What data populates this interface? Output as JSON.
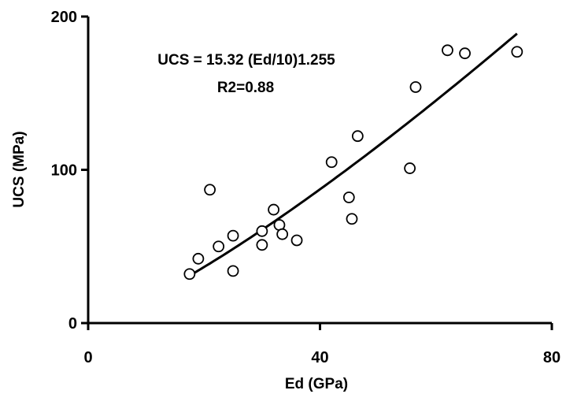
{
  "chart_data": {
    "type": "scatter",
    "title": "",
    "xlabel": "Ed (GPa)",
    "ylabel": "UCS (MPa)",
    "xlim": [
      0,
      80
    ],
    "ylim": [
      0,
      200
    ],
    "x_ticks": [
      "0",
      "40",
      "80"
    ],
    "y_ticks": [
      "0",
      "100",
      "200"
    ],
    "grid": false,
    "legend": "none",
    "annotations": {
      "equation": "UCS = 15.32 (Ed/10)1.255",
      "r2": "R2=0.88"
    },
    "series": [
      {
        "marker": "open-circle",
        "points": [
          {
            "x": 17.5,
            "y": 32
          },
          {
            "x": 19,
            "y": 42
          },
          {
            "x": 21,
            "y": 87
          },
          {
            "x": 22.5,
            "y": 50
          },
          {
            "x": 25,
            "y": 34
          },
          {
            "x": 25,
            "y": 57
          },
          {
            "x": 30,
            "y": 60
          },
          {
            "x": 30,
            "y": 51
          },
          {
            "x": 32,
            "y": 74
          },
          {
            "x": 33,
            "y": 64
          },
          {
            "x": 33.5,
            "y": 58
          },
          {
            "x": 36,
            "y": 54
          },
          {
            "x": 42,
            "y": 105
          },
          {
            "x": 45,
            "y": 82
          },
          {
            "x": 45.5,
            "y": 68
          },
          {
            "x": 46.5,
            "y": 122
          },
          {
            "x": 55.5,
            "y": 101
          },
          {
            "x": 56.5,
            "y": 154
          },
          {
            "x": 62,
            "y": 178
          },
          {
            "x": 65,
            "y": 176
          },
          {
            "x": 74,
            "y": 177
          }
        ]
      }
    ],
    "trendline": {
      "type": "power",
      "coefficient": 15.32,
      "divisor": 10,
      "exponent": 1.255,
      "x_range": [
        17.5,
        74
      ]
    }
  }
}
